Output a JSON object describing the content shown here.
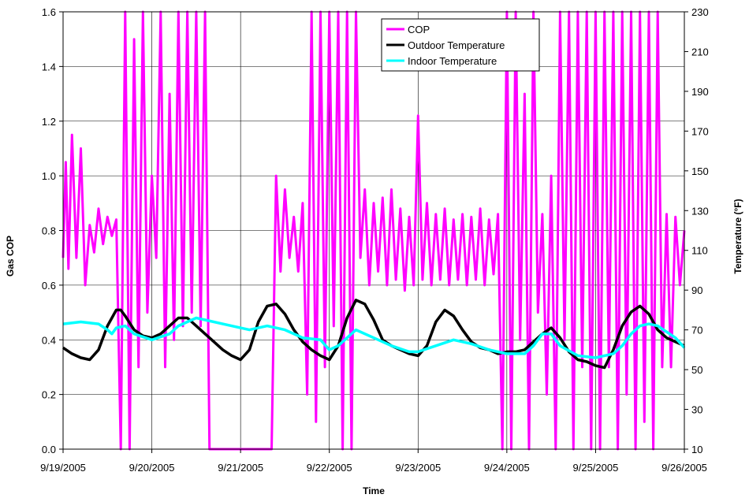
{
  "chart_data": {
    "type": "line",
    "xlabel": "Time",
    "y1label": "Gas COP",
    "y2label": "Temperature (°F)",
    "x_ticks": [
      "9/19/2005",
      "9/20/2005",
      "9/21/2005",
      "9/22/2005",
      "9/23/2005",
      "9/24/2005",
      "9/25/2005",
      "9/26/2005"
    ],
    "y1_ticks": [
      "0.0",
      "0.2",
      "0.4",
      "0.6",
      "0.8",
      "1.0",
      "1.2",
      "1.4",
      "1.6"
    ],
    "y2_ticks": [
      "10",
      "30",
      "50",
      "70",
      "90",
      "110",
      "130",
      "150",
      "170",
      "190",
      "210",
      "230"
    ],
    "y1lim": [
      0,
      1.6
    ],
    "y2lim": [
      10,
      230
    ],
    "grid": true,
    "legend_position": "top-center",
    "series": [
      {
        "name": "COP",
        "axis": "left",
        "color": "#ff00ff",
        "x": [
          0.0,
          0.03,
          0.06,
          0.1,
          0.15,
          0.2,
          0.25,
          0.3,
          0.35,
          0.4,
          0.45,
          0.5,
          0.55,
          0.6,
          0.65,
          0.7,
          0.75,
          0.8,
          0.85,
          0.9,
          0.95,
          1.0,
          1.05,
          1.1,
          1.15,
          1.2,
          1.25,
          1.3,
          1.35,
          1.4,
          1.45,
          1.5,
          1.55,
          1.6,
          1.65,
          1.7,
          1.75,
          1.8,
          1.85,
          1.9,
          1.95,
          2.0,
          2.05,
          2.1,
          2.15,
          2.2,
          2.25,
          2.3,
          2.35,
          2.4,
          2.45,
          2.5,
          2.55,
          2.6,
          2.65,
          2.7,
          2.75,
          2.8,
          2.85,
          2.9,
          2.95,
          3.0,
          3.05,
          3.1,
          3.15,
          3.2,
          3.25,
          3.3,
          3.35,
          3.4,
          3.45,
          3.5,
          3.55,
          3.6,
          3.65,
          3.7,
          3.75,
          3.8,
          3.85,
          3.9,
          3.95,
          4.0,
          4.05,
          4.1,
          4.15,
          4.2,
          4.25,
          4.3,
          4.35,
          4.4,
          4.45,
          4.5,
          4.55,
          4.6,
          4.65,
          4.7,
          4.75,
          4.8,
          4.85,
          4.9,
          4.95,
          5.0,
          5.05,
          5.1,
          5.15,
          5.2,
          5.25,
          5.3,
          5.35,
          5.4,
          5.45,
          5.5,
          5.55,
          5.6,
          5.65,
          5.7,
          5.75,
          5.8,
          5.85,
          5.9,
          5.95,
          6.0,
          6.05,
          6.1,
          6.15,
          6.2,
          6.25,
          6.3,
          6.35,
          6.4,
          6.45,
          6.5,
          6.55,
          6.6,
          6.65,
          6.7,
          6.75,
          6.8,
          6.85,
          6.9,
          6.95,
          7.0
        ],
        "values": [
          0.7,
          1.05,
          0.66,
          1.15,
          0.7,
          1.1,
          0.6,
          0.82,
          0.72,
          0.88,
          0.75,
          0.85,
          0.78,
          0.84,
          0.0,
          1.6,
          0.0,
          1.5,
          0.3,
          1.6,
          0.5,
          1.0,
          0.7,
          1.6,
          0.3,
          1.3,
          0.4,
          1.6,
          0.45,
          1.6,
          0.5,
          1.6,
          0.45,
          1.6,
          0.0,
          0.0,
          0.0,
          0.0,
          0.0,
          0.0,
          0.0,
          0.0,
          0.0,
          0.0,
          0.0,
          0.0,
          0.0,
          0.0,
          0.0,
          1.0,
          0.65,
          0.95,
          0.7,
          0.85,
          0.65,
          0.9,
          0.2,
          1.6,
          0.1,
          1.6,
          0.3,
          1.6,
          0.45,
          1.6,
          0.0,
          1.6,
          0.0,
          1.6,
          0.7,
          0.95,
          0.6,
          0.9,
          0.65,
          0.92,
          0.6,
          0.95,
          0.62,
          0.88,
          0.58,
          0.85,
          0.6,
          1.22,
          0.62,
          0.9,
          0.6,
          0.86,
          0.62,
          0.88,
          0.6,
          0.84,
          0.62,
          0.86,
          0.6,
          0.85,
          0.62,
          0.88,
          0.6,
          0.84,
          0.64,
          0.86,
          0.0,
          1.6,
          0.0,
          1.6,
          0.4,
          1.3,
          0.0,
          1.6,
          0.5,
          0.86,
          0.2,
          1.0,
          0.0,
          1.6,
          0.4,
          1.6,
          0.0,
          1.6,
          0.3,
          1.6,
          0.0,
          1.6,
          0.0,
          1.6,
          0.3,
          1.6,
          0.0,
          1.6,
          0.2,
          1.6,
          0.0,
          1.6,
          0.1,
          1.6,
          0.0,
          1.6,
          0.3,
          0.86,
          0.3,
          0.85,
          0.6,
          0.8
        ]
      },
      {
        "name": "Outdoor Temperature",
        "axis": "right",
        "color": "#000000",
        "x": [
          0.0,
          0.1,
          0.2,
          0.3,
          0.4,
          0.5,
          0.6,
          0.65,
          0.7,
          0.8,
          0.9,
          1.0,
          1.1,
          1.2,
          1.3,
          1.4,
          1.5,
          1.6,
          1.7,
          1.8,
          1.9,
          2.0,
          2.1,
          2.2,
          2.3,
          2.4,
          2.5,
          2.6,
          2.7,
          2.8,
          2.9,
          3.0,
          3.1,
          3.2,
          3.3,
          3.4,
          3.5,
          3.6,
          3.7,
          3.8,
          3.9,
          4.0,
          4.1,
          4.2,
          4.3,
          4.4,
          4.5,
          4.6,
          4.7,
          4.8,
          4.9,
          5.0,
          5.1,
          5.2,
          5.3,
          5.4,
          5.5,
          5.6,
          5.7,
          5.8,
          5.9,
          6.0,
          6.1,
          6.2,
          6.3,
          6.4,
          6.5,
          6.6,
          6.7,
          6.8,
          6.9,
          7.0
        ],
        "values": [
          61,
          58,
          56,
          55,
          60,
          72,
          80,
          80,
          77,
          70,
          67,
          66,
          68,
          72,
          76,
          76,
          72,
          68,
          64,
          60,
          57,
          55,
          60,
          74,
          82,
          83,
          78,
          70,
          64,
          60,
          57,
          55,
          62,
          76,
          85,
          83,
          75,
          65,
          62,
          60,
          58,
          57,
          62,
          74,
          80,
          77,
          70,
          64,
          61,
          60,
          58,
          59,
          59,
          60,
          64,
          68,
          71,
          66,
          59,
          55,
          54,
          52,
          51,
          60,
          72,
          79,
          82,
          78,
          70,
          66,
          64,
          62
        ]
      },
      {
        "name": "Indoor Temperature",
        "axis": "right",
        "color": "#00ffff",
        "x": [
          0.0,
          0.2,
          0.4,
          0.5,
          0.55,
          0.6,
          0.7,
          0.8,
          1.0,
          1.2,
          1.3,
          1.4,
          1.5,
          1.6,
          1.8,
          2.0,
          2.1,
          2.3,
          2.5,
          2.7,
          2.9,
          3.0,
          3.1,
          3.3,
          3.5,
          3.7,
          3.9,
          4.0,
          4.2,
          4.4,
          4.6,
          4.8,
          5.0,
          5.2,
          5.3,
          5.4,
          5.5,
          5.6,
          5.8,
          6.0,
          6.2,
          6.3,
          6.4,
          6.5,
          6.6,
          6.7,
          6.8,
          6.9,
          7.0
        ],
        "values": [
          73,
          74,
          73,
          70,
          68,
          71,
          72,
          68,
          65,
          68,
          72,
          74,
          76,
          75,
          73,
          71,
          70,
          72,
          70,
          66,
          65,
          60,
          62,
          70,
          66,
          62,
          59,
          59,
          62,
          65,
          63,
          60,
          58,
          58,
          62,
          68,
          68,
          62,
          57,
          56,
          58,
          62,
          68,
          72,
          73,
          72,
          69,
          66,
          61
        ]
      }
    ]
  }
}
